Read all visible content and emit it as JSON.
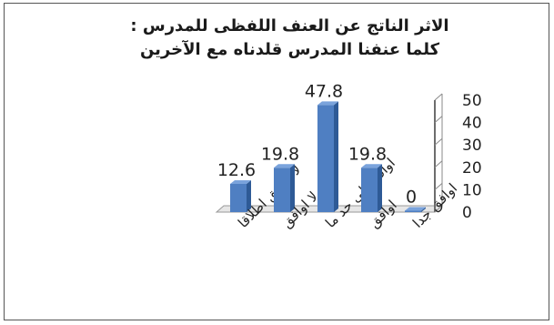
{
  "chart_data": {
    "type": "bar",
    "title_lines": [
      "الاثر الناتج عن العنف اللفظى للمدرس :",
      "كلما عنفنا المدرس قلدناه مع الآخرين"
    ],
    "categories": [
      "لا اوافق اطلاقا",
      "لا اوافق",
      "اوافق الى حد ما",
      "اوافق",
      "اوافق جدا"
    ],
    "values": [
      12.6,
      19.8,
      47.8,
      19.8,
      0
    ],
    "data_labels": [
      "12.6",
      "19.8",
      "47.8",
      "19.8",
      "0"
    ],
    "y_ticks": [
      "0",
      "10",
      "20",
      "30",
      "40",
      "50"
    ],
    "ylim": [
      0,
      50
    ],
    "y_axis_side": "right",
    "grid": false,
    "legend": "none",
    "bar_color": "#4f7fc2",
    "bar_dark": "#2e5a96",
    "bar_light": "#7aa3dc"
  }
}
